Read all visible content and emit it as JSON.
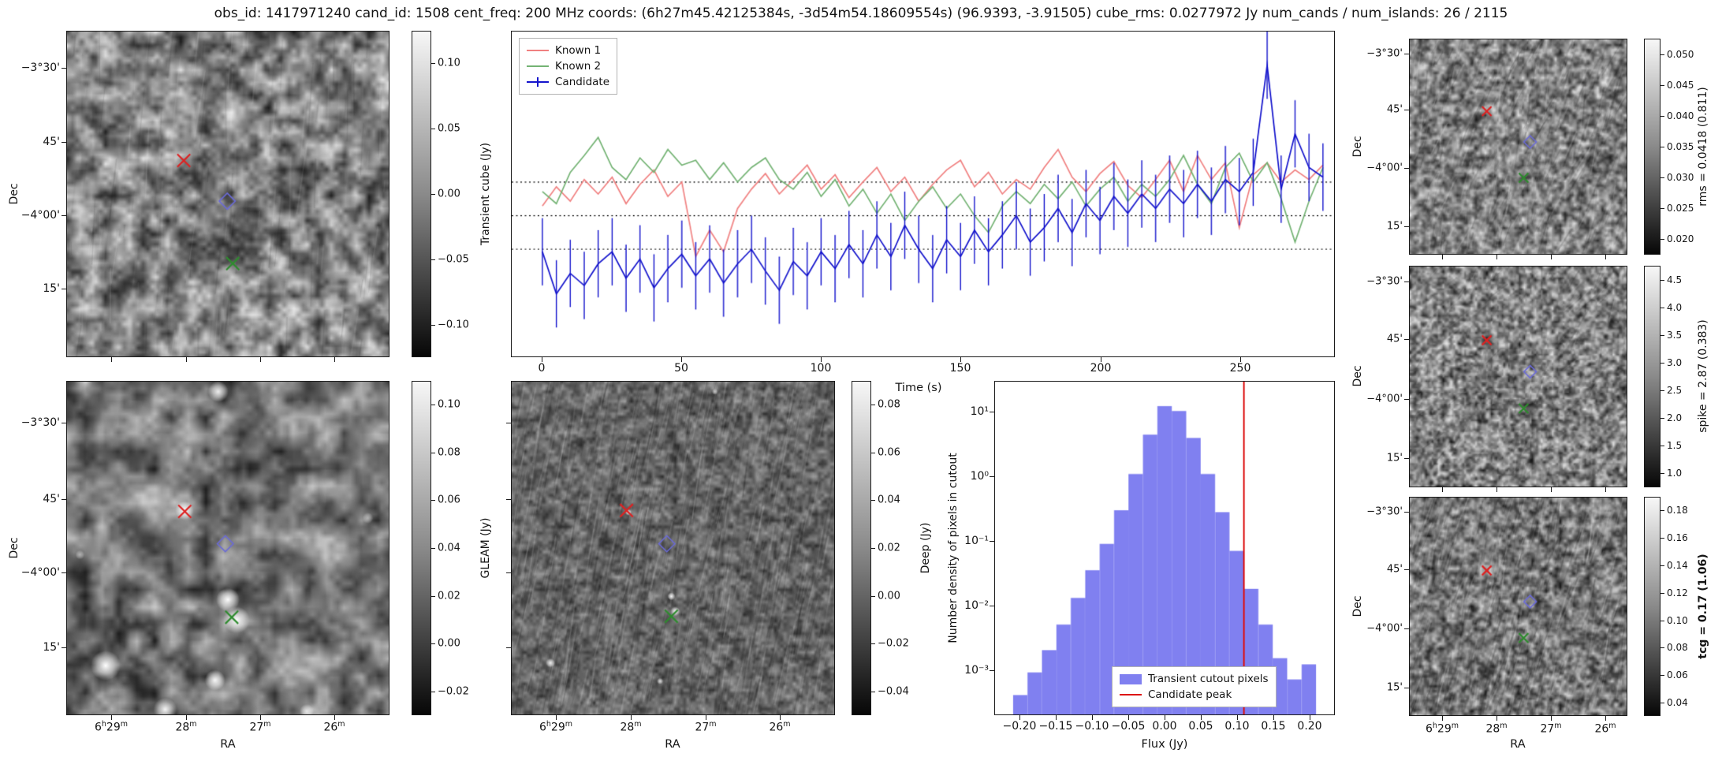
{
  "title": "obs_id: 1417971240 cand_id: 1508 cent_freq: 200 MHz coords: (6h27m45.42125384s, -3d54m54.18609554s) (96.9393, -3.91505) cube_rms: 0.0277972 Jy num_cands / num_islands: 26 / 2115",
  "axes": {
    "dec_label": "Dec",
    "ra_label": "RA",
    "dec_ticks": [
      "−3°30'",
      "45'",
      "−4°00'",
      "15'"
    ],
    "ra_ticks": [
      "6h29m",
      "28m",
      "27m",
      "26m"
    ]
  },
  "image_panels": {
    "transient_cube": {
      "colorbar_label": "Transient cube (Jy)",
      "colorbar_ticks": [
        "0.10",
        "0.05",
        "0.00",
        "−0.05",
        "−0.10"
      ],
      "markers": [
        {
          "shape": "x",
          "color": "#dd2222",
          "x": 0.363,
          "y": 0.397
        },
        {
          "shape": "diamond",
          "color": "#6a6ad8",
          "x": 0.498,
          "y": 0.522
        },
        {
          "shape": "x",
          "color": "#2e8b2e",
          "x": 0.515,
          "y": 0.714
        }
      ]
    },
    "gleam": {
      "colorbar_label": "GLEAM (Jy)",
      "colorbar_ticks": [
        "0.10",
        "0.08",
        "0.06",
        "0.04",
        "0.02",
        "0.00",
        "−0.02"
      ],
      "markers": [
        {
          "shape": "x",
          "color": "#dd2222",
          "x": 0.366,
          "y": 0.39
        },
        {
          "shape": "diamond",
          "color": "#6a6ad8",
          "x": 0.492,
          "y": 0.487
        },
        {
          "shape": "x",
          "color": "#2e8b2e",
          "x": 0.512,
          "y": 0.708
        }
      ],
      "bright_spots": [
        [
          0.47,
          0.03,
          13,
          0.9
        ],
        [
          0.365,
          0.387,
          12,
          0.95
        ],
        [
          0.5,
          0.655,
          15,
          1
        ],
        [
          0.527,
          0.716,
          17,
          1
        ],
        [
          0.12,
          0.853,
          19,
          1
        ],
        [
          0.46,
          0.897,
          13,
          0.95
        ],
        [
          0.305,
          0.985,
          15,
          0.95
        ],
        [
          0.745,
          0.99,
          9,
          0.8
        ],
        [
          0.935,
          0.41,
          7,
          0.5
        ],
        [
          0.04,
          0.52,
          6,
          0.5
        ]
      ]
    },
    "deep": {
      "colorbar_label": "Deep (Jy)",
      "colorbar_ticks": [
        "0.08",
        "0.06",
        "0.04",
        "0.02",
        "0.00",
        "−0.02",
        "−0.04"
      ],
      "markers": [
        {
          "shape": "x",
          "color": "#dd2222",
          "x": 0.356,
          "y": 0.387
        },
        {
          "shape": "diamond",
          "color": "#6a6ad8",
          "x": 0.481,
          "y": 0.487
        },
        {
          "shape": "x",
          "color": "#2e8b2e",
          "x": 0.495,
          "y": 0.705
        }
      ],
      "bright_spots": [
        [
          0.362,
          0.393,
          4,
          0.9
        ],
        [
          0.495,
          0.645,
          5,
          0.95
        ],
        [
          0.507,
          0.69,
          6,
          0.95
        ],
        [
          0.12,
          0.845,
          6,
          0.9
        ],
        [
          0.46,
          0.9,
          4,
          0.8
        ],
        [
          0.63,
          0.03,
          4,
          0.7
        ]
      ]
    },
    "rms": {
      "colorbar_label": "rms = 0.0418 (0.811)",
      "colorbar_ticks": [
        "0.050",
        "0.045",
        "0.040",
        "0.035",
        "0.030",
        "0.025",
        "0.020"
      ],
      "markers": [
        {
          "shape": "x",
          "color": "#dd2222",
          "x": 0.355,
          "y": 0.335
        },
        {
          "shape": "diamond",
          "color": "#6a6ad8",
          "x": 0.555,
          "y": 0.478
        },
        {
          "shape": "x",
          "color": "#2e8b2e",
          "x": 0.525,
          "y": 0.645
        }
      ]
    },
    "spike": {
      "colorbar_label": "spike = 2.87 (0.383)",
      "colorbar_ticks": [
        "4.5",
        "4.0",
        "3.5",
        "3.0",
        "2.5",
        "2.0",
        "1.5",
        "1.0"
      ],
      "markers": [
        {
          "shape": "x",
          "color": "#dd2222",
          "x": 0.355,
          "y": 0.335
        },
        {
          "shape": "diamond",
          "color": "#6a6ad8",
          "x": 0.555,
          "y": 0.478
        },
        {
          "shape": "x",
          "color": "#2e8b2e",
          "x": 0.525,
          "y": 0.645
        }
      ]
    },
    "tcg": {
      "colorbar_label": "tcg = 0.17 (1.06)",
      "label_bold": true,
      "colorbar_ticks": [
        "0.18",
        "0.16",
        "0.14",
        "0.12",
        "0.10",
        "0.08",
        "0.06",
        "0.04"
      ],
      "markers": [
        {
          "shape": "x",
          "color": "#dd2222",
          "x": 0.355,
          "y": 0.335
        },
        {
          "shape": "diamond",
          "color": "#6a6ad8",
          "x": 0.555,
          "y": 0.478
        },
        {
          "shape": "x",
          "color": "#2e8b2e",
          "x": 0.525,
          "y": 0.645
        }
      ]
    }
  },
  "chart_data": [
    {
      "type": "line",
      "name": "lightcurve",
      "xlabel": "Time (s)",
      "ylabel": "Transient cube (Jy)",
      "xlim": [
        -11,
        284
      ],
      "ylim": [
        -0.117,
        0.153
      ],
      "xticks": [
        0,
        50,
        100,
        150,
        200,
        250
      ],
      "xtick_labels": [
        "0",
        "50",
        "100",
        "150",
        "200",
        "250"
      ],
      "hlines": [
        0.0278,
        0,
        -0.0278
      ],
      "hline_style": "dotted",
      "legend_position": "upper left",
      "x": [
        0,
        5,
        10,
        15,
        20,
        25,
        30,
        35,
        40,
        45,
        50,
        55,
        60,
        65,
        70,
        75,
        80,
        85,
        90,
        95,
        100,
        105,
        110,
        115,
        120,
        125,
        130,
        135,
        140,
        145,
        150,
        155,
        160,
        165,
        170,
        175,
        180,
        185,
        190,
        195,
        200,
        205,
        210,
        215,
        220,
        225,
        230,
        235,
        240,
        245,
        250,
        255,
        260,
        265,
        270,
        275,
        280
      ],
      "series": [
        {
          "name": "Known 1",
          "color": "#f08080",
          "y": [
            0.008,
            0.024,
            0.012,
            0.03,
            0.018,
            0.032,
            0.01,
            0.026,
            0.038,
            0.016,
            0.028,
            -0.034,
            -0.012,
            -0.03,
            0.006,
            0.022,
            0.035,
            0.018,
            0.03,
            0.042,
            0.022,
            0.034,
            0.015,
            0.028,
            0.04,
            0.02,
            0.032,
            0.012,
            0.026,
            0.038,
            0.046,
            0.024,
            0.036,
            0.018,
            0.03,
            0.022,
            0.04,
            0.055,
            0.032,
            0.02,
            0.035,
            0.045,
            0.025,
            0.015,
            0.03,
            0.046,
            0.02,
            0.05,
            0.03,
            0.044,
            -0.01,
            0.034,
            0.044,
            0.028,
            0.038,
            0.03,
            0.042
          ]
        },
        {
          "name": "Known 2",
          "color": "#74b374",
          "y": [
            0.02,
            0.01,
            0.036,
            0.05,
            0.065,
            0.04,
            0.03,
            0.048,
            0.036,
            0.055,
            0.042,
            0.046,
            0.03,
            0.044,
            0.028,
            0.04,
            0.048,
            0.03,
            0.022,
            0.036,
            0.016,
            0.03,
            0.008,
            0.022,
            0.002,
            0.018,
            -0.004,
            0.012,
            0.024,
            0.006,
            0.018,
            0.0,
            -0.014,
            0.008,
            0.02,
            0.01,
            0.026,
            0.014,
            0.028,
            0.008,
            0.022,
            0.032,
            0.012,
            0.026,
            0.016,
            0.03,
            0.05,
            0.026,
            0.01,
            0.04,
            0.052,
            0.028,
            0.044,
            0.014,
            -0.022,
            0.012,
            0.04
          ]
        },
        {
          "name": "Candidate",
          "color": "#1414cc",
          "yerr": 0.028,
          "y": [
            -0.03,
            -0.065,
            -0.048,
            -0.058,
            -0.04,
            -0.03,
            -0.052,
            -0.036,
            -0.06,
            -0.044,
            -0.032,
            -0.05,
            -0.036,
            -0.056,
            -0.04,
            -0.028,
            -0.046,
            -0.062,
            -0.038,
            -0.05,
            -0.03,
            -0.044,
            -0.024,
            -0.04,
            -0.016,
            -0.034,
            -0.008,
            -0.028,
            -0.044,
            -0.02,
            -0.034,
            -0.012,
            -0.03,
            -0.016,
            0.0,
            -0.022,
            -0.01,
            0.006,
            -0.014,
            0.01,
            -0.004,
            0.016,
            0.002,
            0.018,
            0.006,
            0.022,
            0.01,
            0.026,
            0.012,
            0.03,
            0.02,
            0.036,
            0.125,
            0.022,
            0.068,
            0.04,
            0.032
          ]
        }
      ]
    },
    {
      "type": "bar",
      "name": "pixel-histogram",
      "xlabel": "Flux (Jy)",
      "ylabel": "Number density of pixels in cutout",
      "yscale": "log",
      "xlim": [
        -0.235,
        0.235
      ],
      "ylim": [
        0.0002,
        30
      ],
      "bar_color": "#8080f0",
      "line_color": "#dd1111",
      "bin_width": 0.02,
      "bin_centers": [
        -0.2,
        -0.18,
        -0.16,
        -0.14,
        -0.12,
        -0.1,
        -0.08,
        -0.06,
        -0.04,
        -0.02,
        0.0,
        0.02,
        0.04,
        0.06,
        0.08,
        0.1,
        0.12,
        0.14,
        0.16,
        0.18,
        0.2
      ],
      "densities": [
        0.0004,
        0.0009,
        0.002,
        0.005,
        0.013,
        0.035,
        0.09,
        0.3,
        1.1,
        4.5,
        12.5,
        10.5,
        4.0,
        1.1,
        0.28,
        0.07,
        0.018,
        0.005,
        0.0015,
        0.0007,
        0.0012
      ],
      "candidate_peak": 0.11,
      "xtick_values": [
        -0.2,
        -0.15,
        -0.1,
        -0.05,
        0.0,
        0.05,
        0.1,
        0.15,
        0.2
      ],
      "xtick_labels": [
        "−0.20",
        "−0.15",
        "−0.10",
        "−0.05",
        "0.00",
        "0.05",
        "0.10",
        "0.15",
        "0.20"
      ],
      "ytick_values": [
        10,
        1,
        0.1,
        0.01,
        0.001
      ],
      "ytick_labels": [
        "10¹",
        "10⁰",
        "10⁻¹",
        "10⁻²",
        "10⁻³"
      ],
      "legend": [
        "Transient cutout pixels",
        "Candidate peak"
      ],
      "legend_position": "lower center"
    }
  ]
}
